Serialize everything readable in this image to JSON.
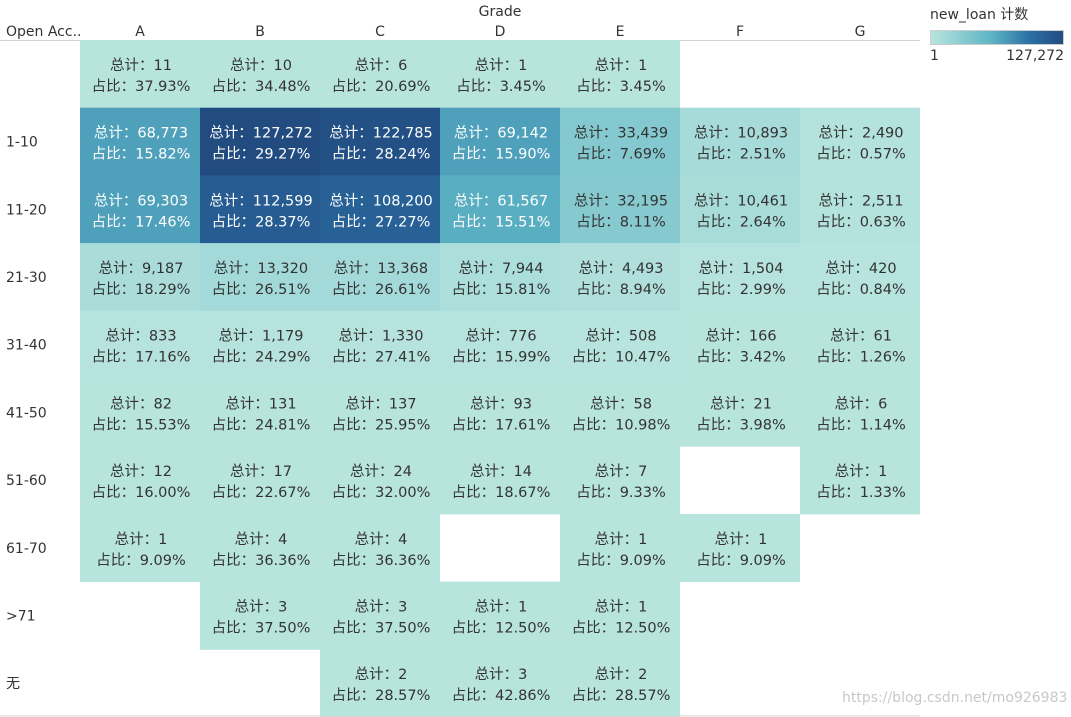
{
  "chart_data": {
    "type": "heatmap",
    "title": "Grade",
    "xlabel": "Grade",
    "ylabel": "Open Acc..",
    "total_label": "总计：",
    "pct_label": "占比：",
    "columns": [
      "A",
      "B",
      "C",
      "D",
      "E",
      "F",
      "G"
    ],
    "rows": [
      {
        "label": "",
        "cells": [
          {
            "total": "11",
            "pct": "37.93%"
          },
          {
            "total": "10",
            "pct": "34.48%"
          },
          {
            "total": "6",
            "pct": "20.69%"
          },
          {
            "total": "1",
            "pct": "3.45%"
          },
          {
            "total": "1",
            "pct": "3.45%"
          },
          null,
          null
        ]
      },
      {
        "label": "1-10",
        "cells": [
          {
            "total": "68,773",
            "pct": "15.82%"
          },
          {
            "total": "127,272",
            "pct": "29.27%"
          },
          {
            "total": "122,785",
            "pct": "28.24%"
          },
          {
            "total": "69,142",
            "pct": "15.90%"
          },
          {
            "total": "33,439",
            "pct": "7.69%"
          },
          {
            "total": "10,893",
            "pct": "2.51%"
          },
          {
            "total": "2,490",
            "pct": "0.57%"
          }
        ]
      },
      {
        "label": "11-20",
        "cells": [
          {
            "total": "69,303",
            "pct": "17.46%"
          },
          {
            "total": "112,599",
            "pct": "28.37%"
          },
          {
            "total": "108,200",
            "pct": "27.27%"
          },
          {
            "total": "61,567",
            "pct": "15.51%"
          },
          {
            "total": "32,195",
            "pct": "8.11%"
          },
          {
            "total": "10,461",
            "pct": "2.64%"
          },
          {
            "total": "2,511",
            "pct": "0.63%"
          }
        ]
      },
      {
        "label": "21-30",
        "cells": [
          {
            "total": "9,187",
            "pct": "18.29%"
          },
          {
            "total": "13,320",
            "pct": "26.51%"
          },
          {
            "total": "13,368",
            "pct": "26.61%"
          },
          {
            "total": "7,944",
            "pct": "15.81%"
          },
          {
            "total": "4,493",
            "pct": "8.94%"
          },
          {
            "total": "1,504",
            "pct": "2.99%"
          },
          {
            "total": "420",
            "pct": "0.84%"
          }
        ]
      },
      {
        "label": "31-40",
        "cells": [
          {
            "total": "833",
            "pct": "17.16%"
          },
          {
            "total": "1,179",
            "pct": "24.29%"
          },
          {
            "total": "1,330",
            "pct": "27.41%"
          },
          {
            "total": "776",
            "pct": "15.99%"
          },
          {
            "total": "508",
            "pct": "10.47%"
          },
          {
            "total": "166",
            "pct": "3.42%"
          },
          {
            "total": "61",
            "pct": "1.26%"
          }
        ]
      },
      {
        "label": "41-50",
        "cells": [
          {
            "total": "82",
            "pct": "15.53%"
          },
          {
            "total": "131",
            "pct": "24.81%"
          },
          {
            "total": "137",
            "pct": "25.95%"
          },
          {
            "total": "93",
            "pct": "17.61%"
          },
          {
            "total": "58",
            "pct": "10.98%"
          },
          {
            "total": "21",
            "pct": "3.98%"
          },
          {
            "total": "6",
            "pct": "1.14%"
          }
        ]
      },
      {
        "label": "51-60",
        "cells": [
          {
            "total": "12",
            "pct": "16.00%"
          },
          {
            "total": "17",
            "pct": "22.67%"
          },
          {
            "total": "24",
            "pct": "32.00%"
          },
          {
            "total": "14",
            "pct": "18.67%"
          },
          {
            "total": "7",
            "pct": "9.33%"
          },
          null,
          {
            "total": "1",
            "pct": "1.33%"
          }
        ]
      },
      {
        "label": "61-70",
        "cells": [
          {
            "total": "1",
            "pct": "9.09%"
          },
          {
            "total": "4",
            "pct": "36.36%"
          },
          {
            "total": "4",
            "pct": "36.36%"
          },
          null,
          {
            "total": "1",
            "pct": "9.09%"
          },
          {
            "total": "1",
            "pct": "9.09%"
          },
          null
        ]
      },
      {
        "label": ">71",
        "cells": [
          null,
          {
            "total": "3",
            "pct": "37.50%"
          },
          {
            "total": "3",
            "pct": "37.50%"
          },
          {
            "total": "1",
            "pct": "12.50%"
          },
          {
            "total": "1",
            "pct": "12.50%"
          },
          null,
          null
        ]
      },
      {
        "label": "无",
        "cells": [
          null,
          null,
          {
            "total": "2",
            "pct": "28.57%"
          },
          {
            "total": "3",
            "pct": "42.86%"
          },
          {
            "total": "2",
            "pct": "28.57%"
          },
          null,
          null
        ]
      }
    ],
    "color_scale": {
      "min": 1,
      "max": 127272,
      "colors": [
        "#b8e4de",
        "#5fb6c5",
        "#2b6fa4",
        "#224c80"
      ]
    },
    "legend": {
      "title": "new_loan 计数",
      "min_label": "1",
      "max_label": "127,272",
      "placement": "top-right"
    }
  },
  "watermark": "https://blog.csdn.net/mo926983"
}
